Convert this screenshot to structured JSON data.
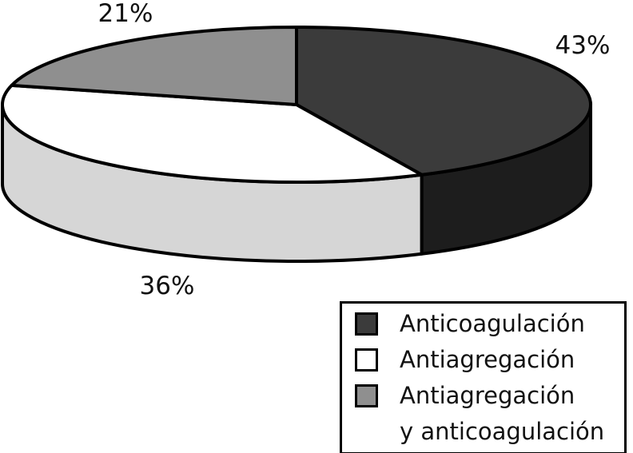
{
  "chart_data": {
    "type": "pie",
    "style": "3d-exploded-none",
    "title": "",
    "start_angle_deg": -90,
    "direction": "clockwise",
    "legend_position": "bottom-right",
    "outline_color": "#000000",
    "background_color": "#ffffff",
    "slices": [
      {
        "label": "Anticoagulación",
        "value": 43,
        "percent_label": "43%",
        "top_color": "#3b3b3b",
        "side_color": "#1d1d1d"
      },
      {
        "label": "Antiagregación",
        "value": 36,
        "percent_label": "36%",
        "top_color": "#ffffff",
        "side_color": "#d6d6d6"
      },
      {
        "label": "Antiagregación y anticoagulación",
        "value": 21,
        "percent_label": "21%",
        "top_color": "#8f8f8f",
        "side_color": "#8f8f8f"
      }
    ]
  },
  "legend": {
    "items": [
      {
        "lines": [
          "Anticoagulación"
        ],
        "swatch_color": "#3b3b3b"
      },
      {
        "lines": [
          "Antiagregación"
        ],
        "swatch_color": "#ffffff"
      },
      {
        "lines": [
          "Antiagregación",
          "y anticoagulación"
        ],
        "swatch_color": "#8f8f8f"
      }
    ]
  }
}
